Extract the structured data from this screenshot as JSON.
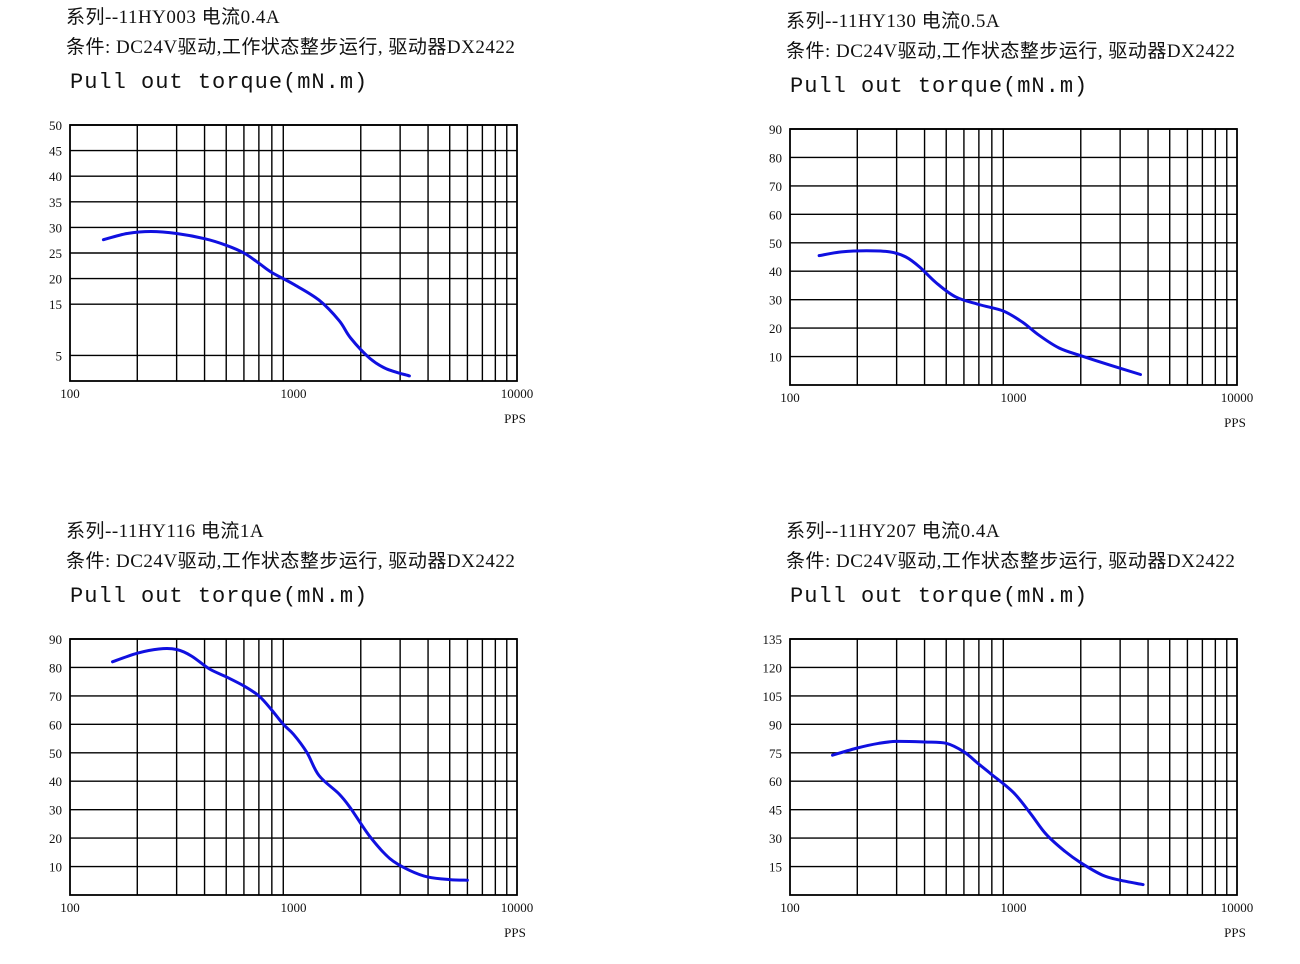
{
  "charts": [
    {
      "title_line1": "系列--11HY003 电流0.4A",
      "title_line2": "条件: DC24V驱动,工作状态整步运行, 驱动器DX2422",
      "title_line3": "Pull out torque(mN.m)"
    },
    {
      "title_line1": "系列--11HY130 电流0.5A",
      "title_line2": "条件: DC24V驱动,工作状态整步运行, 驱动器DX2422",
      "title_line3": "Pull out torque(mN.m)"
    },
    {
      "title_line1": "系列--11HY116 电流1A",
      "title_line2": "条件: DC24V驱动,工作状态整步运行, 驱动器DX2422",
      "title_line3": "Pull out torque(mN.m)"
    },
    {
      "title_line1": "系列--11HY207 电流0.4A",
      "title_line2": "条件: DC24V驱动,工作状态整步运行, 驱动器DX2422",
      "title_line3": "Pull out torque(mN.m)"
    }
  ],
  "chart_data": [
    {
      "type": "line",
      "title": "Pull out torque(mN.m)",
      "xlabel": "PPS",
      "ylabel": "",
      "x_scale": "log",
      "xlim": [
        100,
        10000
      ],
      "ylim": [
        0,
        50
      ],
      "x_ticks": [
        "100",
        "1000",
        "10000"
      ],
      "y_ticks": [
        "5",
        "15",
        "20",
        "25",
        "30",
        "35",
        "40",
        "45",
        "50"
      ],
      "y_tick_values": [
        5,
        15,
        20,
        25,
        30,
        35,
        40,
        45,
        50
      ],
      "grid": true,
      "line_color": "#1010e0",
      "series": [
        {
          "x": [
            141,
            180,
            230,
            300,
            400,
            500,
            600,
            700,
            800,
            1000,
            1300,
            1600,
            1800,
            2200,
            2600,
            3300
          ],
          "y": [
            27.6,
            28.8,
            29.2,
            28.8,
            27.8,
            26.5,
            25.0,
            23.0,
            21.2,
            18.9,
            15.8,
            11.8,
            8.4,
            4.4,
            2.4,
            1.0
          ]
        }
      ]
    },
    {
      "type": "line",
      "title": "Pull out torque(mN.m)",
      "xlabel": "PPS",
      "ylabel": "",
      "x_scale": "log",
      "xlim": [
        100,
        10000
      ],
      "ylim": [
        0,
        90
      ],
      "x_ticks": [
        "100",
        "1000",
        "10000"
      ],
      "y_ticks": [
        "10",
        "20",
        "30",
        "40",
        "50",
        "60",
        "70",
        "80",
        "90"
      ],
      "y_tick_values": [
        10,
        20,
        30,
        40,
        50,
        60,
        70,
        80,
        90
      ],
      "grid": true,
      "line_color": "#1010e0",
      "series": [
        {
          "x": [
            135,
            170,
            220,
            280,
            330,
            380,
            450,
            550,
            700,
            900,
            1100,
            1300,
            1600,
            2000,
            2700,
            3700
          ],
          "y": [
            45.5,
            46.8,
            47.2,
            46.8,
            45.0,
            41.5,
            36.0,
            31.0,
            28.3,
            26.0,
            22.0,
            17.5,
            13.0,
            10.3,
            7.0,
            3.7
          ]
        }
      ]
    },
    {
      "type": "line",
      "title": "Pull out torque(mN.m)",
      "xlabel": "PPS",
      "ylabel": "",
      "x_scale": "log",
      "xlim": [
        100,
        10000
      ],
      "ylim": [
        0,
        90
      ],
      "x_ticks": [
        "100",
        "1000",
        "10000"
      ],
      "y_ticks": [
        "10",
        "20",
        "30",
        "40",
        "50",
        "60",
        "70",
        "80",
        "90"
      ],
      "y_tick_values": [
        10,
        20,
        30,
        40,
        50,
        60,
        70,
        80,
        90
      ],
      "grid": true,
      "line_color": "#1010e0",
      "series": [
        {
          "x": [
            155,
            200,
            250,
            300,
            350,
            420,
            500,
            600,
            700,
            800,
            900,
            1000,
            1150,
            1300,
            1600,
            1800,
            2200,
            2700,
            3300,
            4000,
            5000,
            6000
          ],
          "y": [
            82.0,
            85.0,
            86.5,
            86.3,
            84.0,
            79.5,
            76.7,
            73.5,
            70.0,
            65.0,
            60.0,
            56.5,
            50.0,
            42.0,
            35.5,
            30.5,
            20.5,
            12.8,
            8.7,
            6.3,
            5.4,
            5.2
          ]
        }
      ]
    },
    {
      "type": "line",
      "title": "Pull out torque(mN.m)",
      "xlabel": "PPS",
      "ylabel": "",
      "x_scale": "log",
      "xlim": [
        100,
        10000
      ],
      "ylim": [
        0,
        135
      ],
      "x_ticks": [
        "100",
        "1000",
        "10000"
      ],
      "y_ticks": [
        "15",
        "30",
        "45",
        "60",
        "75",
        "90",
        "105",
        "120",
        "135"
      ],
      "y_tick_values": [
        15,
        30,
        45,
        60,
        75,
        90,
        105,
        120,
        135
      ],
      "grid": true,
      "line_color": "#1010e0",
      "series": [
        {
          "x": [
            155,
            200,
            250,
            300,
            400,
            500,
            600,
            700,
            800,
            1000,
            1200,
            1400,
            1700,
            2000,
            2500,
            3000,
            3800
          ],
          "y": [
            73.7,
            77.5,
            80.0,
            81.0,
            80.7,
            80.0,
            75.5,
            69.0,
            63.5,
            54.0,
            42.5,
            32.0,
            23.0,
            17.0,
            10.5,
            7.8,
            5.5
          ]
        }
      ]
    }
  ]
}
